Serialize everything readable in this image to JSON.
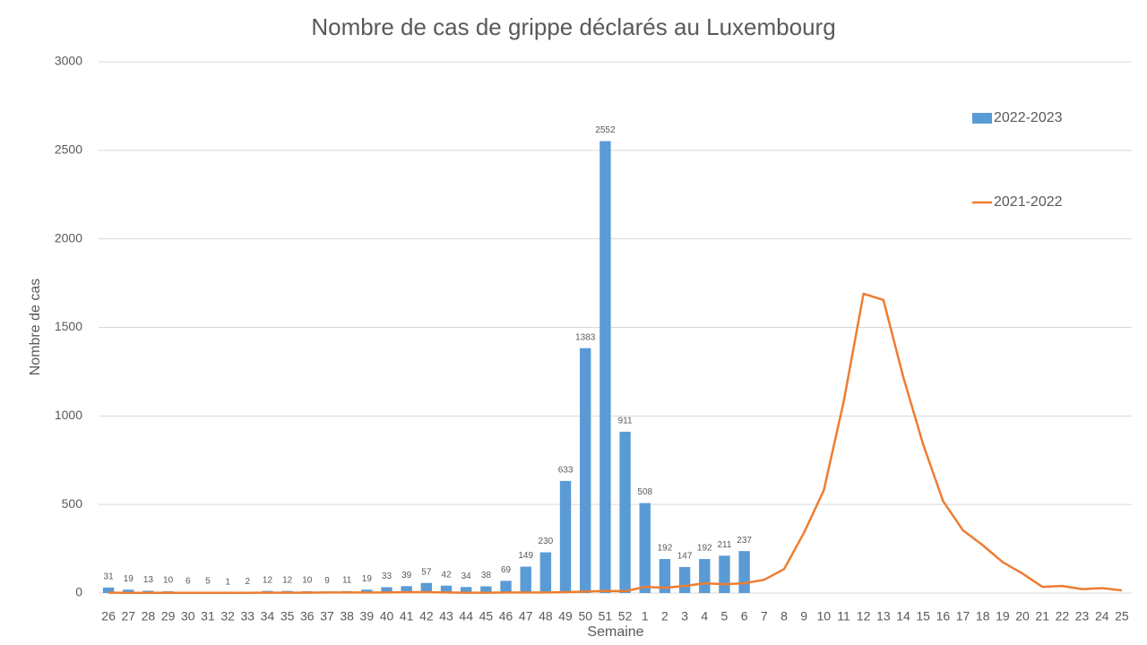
{
  "chart_data": {
    "type": "bar",
    "title": "Nombre de cas de grippe déclarés au Luxembourg",
    "y_label": "Nombre de cas",
    "x_label": "Semaine",
    "categories": [
      "26",
      "27",
      "28",
      "29",
      "30",
      "31",
      "32",
      "33",
      "34",
      "35",
      "36",
      "37",
      "38",
      "39",
      "40",
      "41",
      "42",
      "43",
      "44",
      "45",
      "46",
      "47",
      "48",
      "49",
      "50",
      "51",
      "52",
      "1",
      "2",
      "3",
      "4",
      "5",
      "6",
      "7",
      "8",
      "9",
      "10",
      "11",
      "12",
      "13",
      "14",
      "15",
      "16",
      "17",
      "18",
      "19",
      "20",
      "21",
      "22",
      "23",
      "24",
      "25"
    ],
    "series": [
      {
        "name": "2022-2023",
        "type": "bar",
        "color": "#5b9bd5",
        "values": [
          31,
          19,
          13,
          10,
          6,
          5,
          1,
          2,
          12,
          12,
          10,
          9,
          11,
          19,
          33,
          39,
          57,
          42,
          34,
          38,
          69,
          149,
          230,
          633,
          1383,
          2552,
          911,
          508,
          192,
          147,
          192,
          211,
          237,
          null,
          null,
          null,
          null,
          null,
          null,
          null,
          null,
          null,
          null,
          null,
          null,
          null,
          null,
          null,
          null,
          null,
          null,
          null
        ]
      },
      {
        "name": "2021-2022",
        "type": "line",
        "color": "#ed7d31",
        "values": [
          2,
          1,
          1,
          1,
          1,
          1,
          1,
          1,
          2,
          2,
          2,
          3,
          3,
          3,
          3,
          5,
          5,
          3,
          2,
          2,
          3,
          3,
          3,
          5,
          8,
          12,
          10,
          35,
          30,
          40,
          55,
          50,
          55,
          75,
          135,
          340,
          580,
          1080,
          1690,
          1655,
          1220,
          840,
          520,
          355,
          270,
          175,
          110,
          35,
          40,
          22,
          28,
          15
        ]
      }
    ],
    "ylim": [
      0,
      3000
    ],
    "yticks": [
      0,
      500,
      1000,
      1500,
      2000,
      2500,
      3000
    ],
    "grid": true,
    "legend": "right"
  }
}
